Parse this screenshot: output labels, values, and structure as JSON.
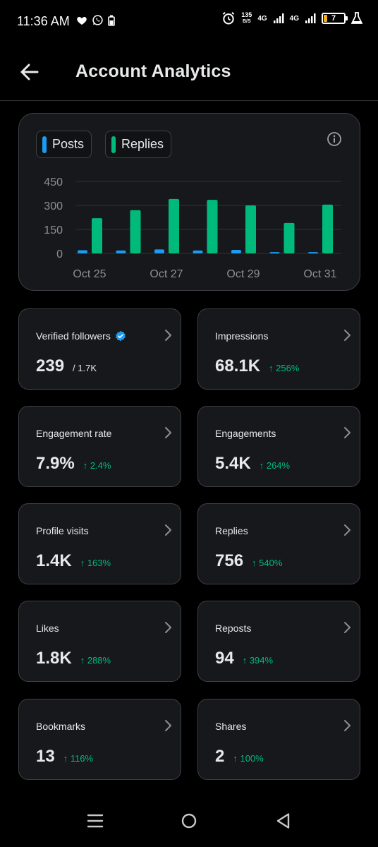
{
  "status": {
    "time": "11:36 AM",
    "net_speed_value": "135",
    "net_speed_unit": "B/S",
    "net_type_1": "4G",
    "net_type_2": "4G",
    "battery": "7"
  },
  "header": {
    "title": "Account Analytics"
  },
  "chart": {
    "legend_posts": "Posts",
    "legend_replies": "Replies",
    "y_ticks": [
      "450",
      "300",
      "150",
      "0"
    ],
    "x_labels": [
      "Oct 25",
      "Oct 27",
      "Oct 29",
      "Oct 31"
    ],
    "colors": {
      "posts": "#1d9bf0",
      "replies": "#00ba7c"
    }
  },
  "chart_data": {
    "type": "bar",
    "categories": [
      "Oct 25",
      "Oct 26",
      "Oct 27",
      "Oct 28",
      "Oct 29",
      "Oct 30",
      "Oct 31"
    ],
    "series": [
      {
        "name": "Posts",
        "values": [
          20,
          18,
          25,
          18,
          22,
          8,
          8
        ]
      },
      {
        "name": "Replies",
        "values": [
          220,
          270,
          340,
          335,
          300,
          190,
          305
        ]
      }
    ],
    "ylim": [
      0,
      450
    ],
    "y_ticks": [
      0,
      150,
      300,
      450
    ],
    "x_tick_labels": [
      "Oct 25",
      "Oct 27",
      "Oct 29",
      "Oct 31"
    ],
    "grid": true,
    "legend": "top-left"
  },
  "cards": [
    {
      "label": "Verified followers",
      "value": "239",
      "sub": "/ 1.7K",
      "change": "",
      "verified": true
    },
    {
      "label": "Impressions",
      "value": "68.1K",
      "sub": "",
      "change": "↑ 256%"
    },
    {
      "label": "Engagement rate",
      "value": "7.9%",
      "sub": "",
      "change": "↑ 2.4%"
    },
    {
      "label": "Engagements",
      "value": "5.4K",
      "sub": "",
      "change": "↑ 264%"
    },
    {
      "label": "Profile visits",
      "value": "1.4K",
      "sub": "",
      "change": "↑ 163%"
    },
    {
      "label": "Replies",
      "value": "756",
      "sub": "",
      "change": "↑ 540%"
    },
    {
      "label": "Likes",
      "value": "1.8K",
      "sub": "",
      "change": "↑ 288%"
    },
    {
      "label": "Reposts",
      "value": "94",
      "sub": "",
      "change": "↑ 394%"
    },
    {
      "label": "Bookmarks",
      "value": "13",
      "sub": "",
      "change": "↑ 116%"
    },
    {
      "label": "Shares",
      "value": "2",
      "sub": "",
      "change": "↑ 100%"
    }
  ],
  "icons": {
    "back": "arrow-left-icon",
    "info": "info-icon",
    "chevron": "chevron-right-icon",
    "verified": "verified-badge-icon",
    "nav_menu": "menu-icon",
    "nav_home": "home-circle-icon",
    "nav_back": "back-triangle-icon"
  }
}
